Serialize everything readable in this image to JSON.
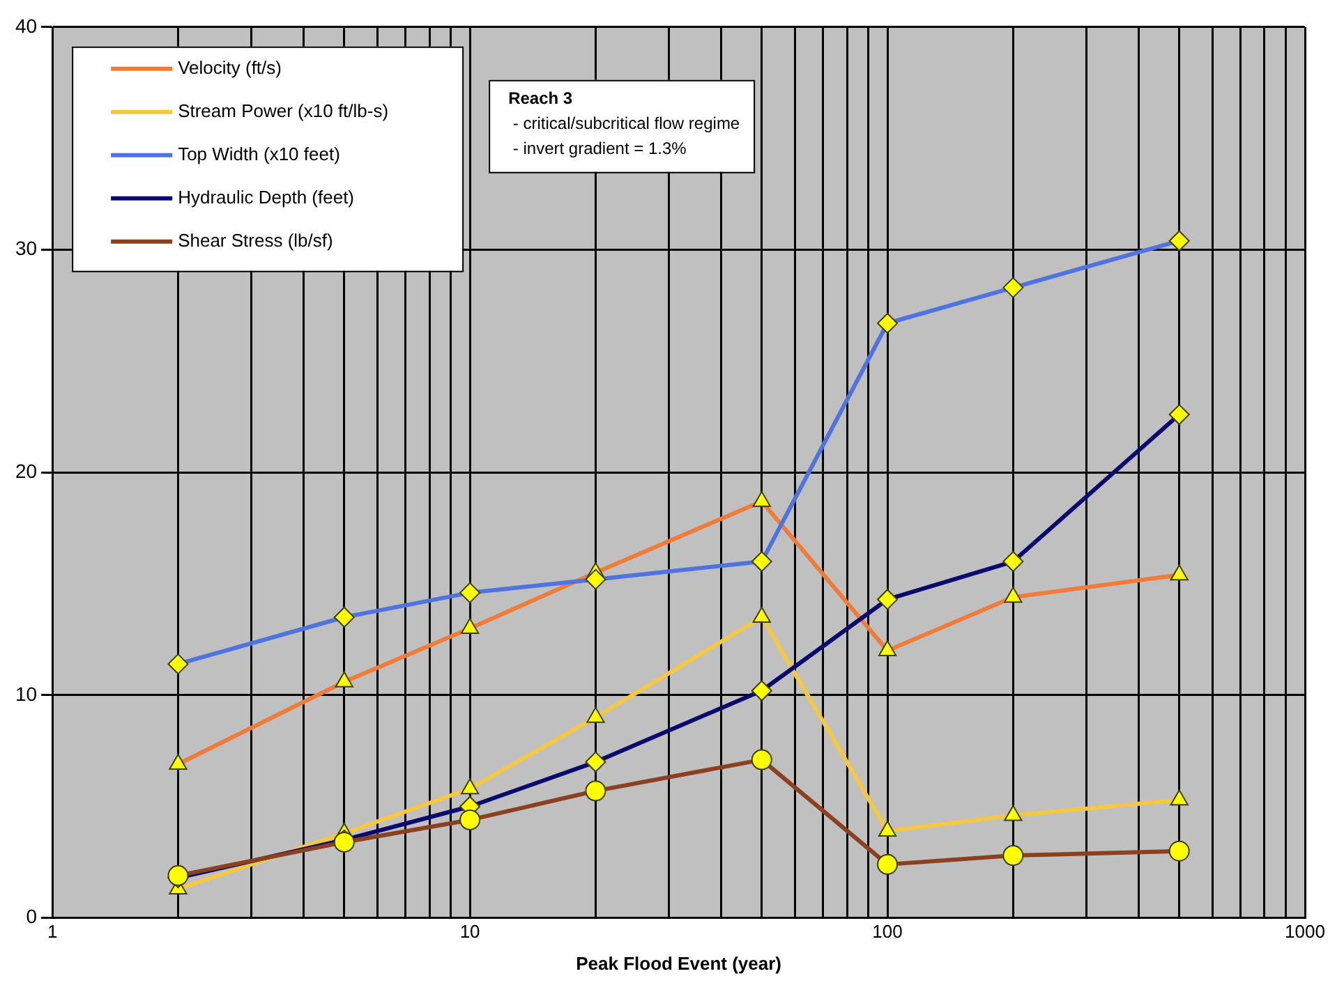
{
  "chart_data": {
    "type": "line",
    "xlabel": "Peak Flood Event (year)",
    "x": [
      2,
      5,
      10,
      20,
      50,
      100,
      200,
      500
    ],
    "series": [
      {
        "name": "Velocity (ft/s)",
        "color": "#f07c3a",
        "marker": "triangle",
        "values": [
          6.9,
          10.6,
          13.0,
          15.5,
          18.7,
          12.0,
          14.4,
          15.4
        ]
      },
      {
        "name": "Stream Power (x10 ft/lb-s)",
        "color": "#f5c842",
        "marker": "triangle",
        "values": [
          1.3,
          3.8,
          5.8,
          9.0,
          13.5,
          3.9,
          4.6,
          5.3
        ]
      },
      {
        "name": "Top Width (x10 feet)",
        "color": "#4f74e0",
        "marker": "diamond",
        "values": [
          11.4,
          13.5,
          14.6,
          15.2,
          16.0,
          26.7,
          28.3,
          30.4
        ]
      },
      {
        "name": "Hydraulic Depth (feet)",
        "color": "#0a0a6e",
        "marker": "diamond",
        "values": [
          1.8,
          3.5,
          5.0,
          7.0,
          10.2,
          14.3,
          16.0,
          22.6
        ]
      },
      {
        "name": "Shear Stress (lb/sf)",
        "color": "#8b4020",
        "marker": "circle",
        "values": [
          1.9,
          3.4,
          4.4,
          5.7,
          7.1,
          2.4,
          2.8,
          3.0
        ]
      }
    ],
    "log": "x",
    "xlim": [
      1,
      1000
    ],
    "xticks": [
      1,
      {
        "value": 2,
        "label": null
      },
      {
        "value": 3,
        "label": null
      },
      {
        "value": 4,
        "label": null
      },
      {
        "value": 5,
        "label": null
      },
      {
        "value": 6,
        "label": null
      },
      {
        "value": 7,
        "label": null
      },
      {
        "value": 8,
        "label": null
      },
      {
        "value": 9,
        "label": null
      },
      10,
      {
        "value": 20,
        "label": null
      },
      {
        "value": 30,
        "label": null
      },
      {
        "value": 40,
        "label": null
      },
      {
        "value": 50,
        "label": null
      },
      {
        "value": 60,
        "label": null
      },
      {
        "value": 70,
        "label": null
      },
      {
        "value": 80,
        "label": null
      },
      {
        "value": 90,
        "label": null
      },
      100,
      {
        "value": 200,
        "label": null
      },
      {
        "value": 300,
        "label": null
      },
      {
        "value": 400,
        "label": null
      },
      {
        "value": 500,
        "label": null
      },
      {
        "value": 600,
        "label": null
      },
      {
        "value": 700,
        "label": null
      },
      {
        "value": 800,
        "label": null
      },
      {
        "value": 900,
        "label": null
      },
      1000
    ],
    "ylim": [
      0,
      40
    ],
    "yticks": [
      0,
      10,
      20,
      30,
      40
    ],
    "grid": true,
    "legend": "top left",
    "annotations": [
      "Reach 3",
      " - critical/subcritical flow regime",
      " - invert gradient = 1.3%"
    ]
  }
}
